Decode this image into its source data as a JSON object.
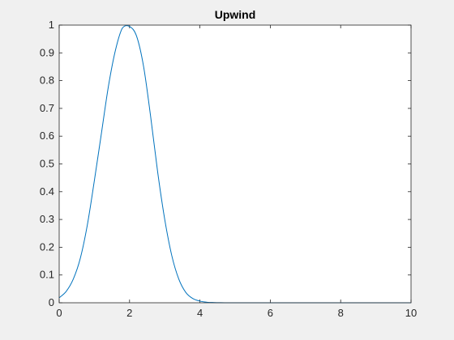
{
  "chart_data": {
    "type": "line",
    "title": "Upwind",
    "xlabel": "",
    "ylabel": "",
    "xlim": [
      0,
      10
    ],
    "ylim": [
      0,
      1
    ],
    "xticks": [
      0,
      2,
      4,
      6,
      8,
      10
    ],
    "xtick_labels": [
      "0",
      "2",
      "4",
      "6",
      "8",
      "10"
    ],
    "yticks": [
      0,
      0.1,
      0.2,
      0.3,
      0.4,
      0.5,
      0.6,
      0.7,
      0.8,
      0.9,
      1
    ],
    "ytick_labels": [
      "0",
      "0.1",
      "0.2",
      "0.3",
      "0.4",
      "0.5",
      "0.6",
      "0.7",
      "0.8",
      "0.9",
      "1"
    ],
    "grid": false,
    "legend": "none",
    "series": [
      {
        "color": "#0072bd",
        "x": [
          0,
          0.2,
          0.4,
          0.6,
          0.8,
          1.0,
          1.2,
          1.4,
          1.6,
          1.8,
          2.0,
          2.2,
          2.4,
          2.6,
          2.8,
          3.0,
          3.2,
          3.4,
          3.6,
          3.8,
          4.0,
          4.2,
          4.4,
          4.6,
          4.8,
          5.0,
          5.5,
          6.0,
          7.0,
          8.0,
          9.0,
          10.0
        ],
        "y": [
          0.018,
          0.041,
          0.085,
          0.16,
          0.28,
          0.44,
          0.61,
          0.78,
          0.91,
          0.99,
          0.995,
          0.96,
          0.85,
          0.67,
          0.47,
          0.3,
          0.17,
          0.085,
          0.037,
          0.015,
          0.006,
          0.002,
          0.0008,
          0.0003,
          0.0001,
          3e-05,
          0,
          0,
          0,
          0,
          0,
          0
        ]
      }
    ]
  }
}
